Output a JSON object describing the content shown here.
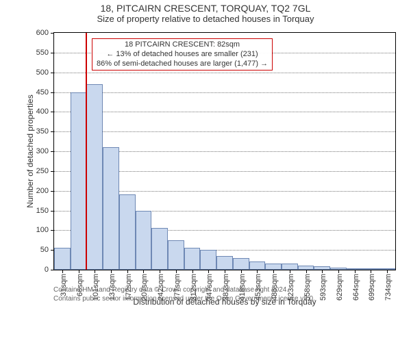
{
  "chart": {
    "type": "histogram",
    "title_line1": "18, PITCAIRN CRESCENT, TORQUAY, TQ2 7GL",
    "title_line2": "Size of property relative to detached houses in Torquay",
    "ylabel": "Number of detached properties",
    "xlabel": "Distribution of detached houses by size in Torquay",
    "background_color": "#ffffff",
    "grid_color": "#777777",
    "axis_color": "#000000",
    "text_color": "#333333",
    "y": {
      "min": 0,
      "max": 600,
      "ticks": [
        0,
        50,
        100,
        150,
        200,
        250,
        300,
        350,
        400,
        450,
        500,
        550,
        600
      ]
    },
    "x": {
      "ticks": [
        "31sqm",
        "66sqm",
        "101sqm",
        "137sqm",
        "172sqm",
        "207sqm",
        "242sqm",
        "277sqm",
        "312sqm",
        "347sqm",
        "383sqm",
        "418sqm",
        "453sqm",
        "488sqm",
        "523sqm",
        "558sqm",
        "593sqm",
        "629sqm",
        "664sqm",
        "699sqm",
        "734sqm"
      ]
    },
    "bars": {
      "fill": "#c9d8ee",
      "border": "#6e88b4",
      "counts": [
        55,
        450,
        470,
        310,
        190,
        150,
        105,
        75,
        55,
        50,
        35,
        30,
        20,
        15,
        15,
        10,
        8,
        5,
        4,
        3,
        3
      ]
    },
    "reference_line": {
      "value_sqm": 82,
      "color": "#cc0000"
    },
    "annotation": {
      "border": "#cc0000",
      "line1": "18 PITCAIRN CRESCENT: 82sqm",
      "line2": "← 13% of detached houses are smaller (231)",
      "line3": "86% of semi-detached houses are larger (1,477) →"
    }
  },
  "notice": {
    "text": "Contains HM Land Registry data © Crown copyright and database right 2024.\nContains public sector information licensed under the Open Government Licence v3.0.",
    "color": "#666666",
    "fontsize": 10
  }
}
